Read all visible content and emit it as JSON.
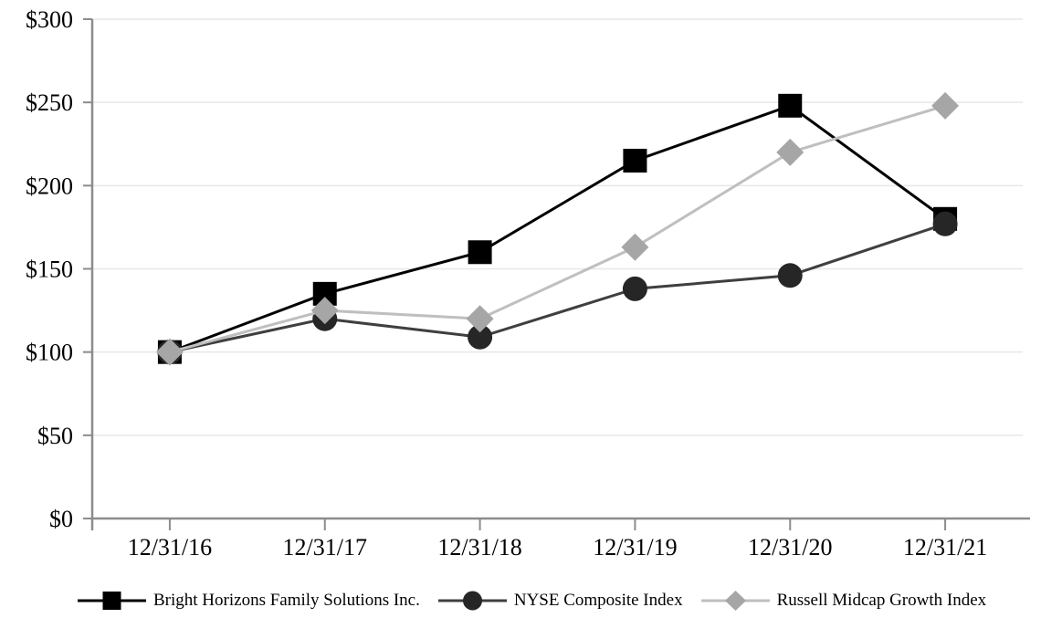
{
  "chart_data": {
    "type": "line",
    "title": "",
    "xlabel": "",
    "ylabel": "",
    "categories": [
      "12/31/16",
      "12/31/17",
      "12/31/18",
      "12/31/19",
      "12/31/20",
      "12/31/21"
    ],
    "ylim": [
      0,
      300
    ],
    "y_ticks": [
      0,
      50,
      100,
      150,
      200,
      250,
      300
    ],
    "y_tick_labels": [
      "$0",
      "$50",
      "$100",
      "$150",
      "$200",
      "$250",
      "$300"
    ],
    "grid": true,
    "legend_position": "bottom",
    "series": [
      {
        "name": "Bright Horizons Family Solutions Inc.",
        "marker": "square",
        "line_color": "#000000",
        "marker_color": "#000000",
        "values": [
          100,
          135,
          160,
          215,
          248,
          180
        ]
      },
      {
        "name": "NYSE Composite Index",
        "marker": "circle",
        "line_color": "#3f3f3f",
        "marker_color": "#262626",
        "values": [
          100,
          120,
          109,
          138,
          146,
          177
        ]
      },
      {
        "name": "Russell Midcap Growth Index",
        "marker": "diamond",
        "line_color": "#bfbfbf",
        "marker_color": "#a6a6a6",
        "values": [
          100,
          125,
          120,
          163,
          220,
          248
        ]
      }
    ],
    "colors": {
      "axis": "#8c8c8c",
      "gridline": "#e7e7e7",
      "text": "#000000",
      "background": "#ffffff"
    }
  }
}
